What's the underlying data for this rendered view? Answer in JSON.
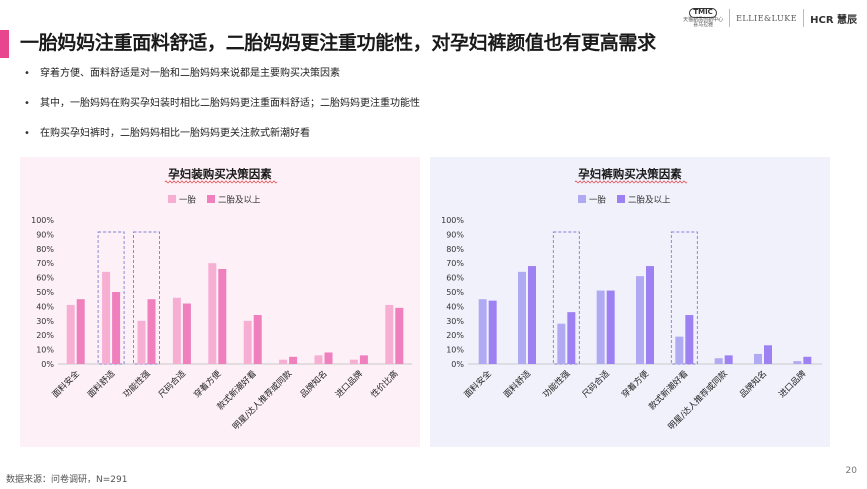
{
  "header": {
    "title": "一胎妈妈注重面料舒适，二胎妈妈更注重功能性，对孕妇裤颜值也有更高需求",
    "logos": {
      "tmic_main": "TMIC",
      "tmic_sub": "天猫新品创新中心\n喜马拉雅",
      "ellie": "ELLIE&LUKE",
      "hcr": "HCR 慧辰"
    }
  },
  "bullets": [
    "穿着方便、面料舒适是对一胎和二胎妈妈来说都是主要购买决策因素",
    "其中，一胎妈妈在购买孕妇装时相比二胎妈妈更注重面料舒适；二胎妈妈更注重功能性",
    "在购买孕妇裤时，二胎妈妈相比一胎妈妈更关注款式新潮好看"
  ],
  "chart_data": [
    {
      "type": "bar",
      "title": "孕妇装购买决策因素",
      "categories": [
        "面料安全",
        "面料舒适",
        "功能性强",
        "尺码合适",
        "穿着方便",
        "款式新潮好看",
        "明星/达人推荐或同款",
        "品牌知名",
        "进口品牌",
        "性价比高"
      ],
      "series": [
        {
          "name": "一胎",
          "values": [
            41,
            64,
            30,
            46,
            70,
            30,
            3,
            6,
            3,
            41
          ],
          "color": "#f7aed3"
        },
        {
          "name": "二胎及以上",
          "values": [
            45,
            50,
            45,
            42,
            66,
            34,
            5,
            8,
            6,
            39
          ],
          "color": "#ef7fbd"
        }
      ],
      "highlighted": [
        "面料舒适",
        "功能性强"
      ],
      "yticks": [
        "0%",
        "10%",
        "20%",
        "30%",
        "40%",
        "50%",
        "60%",
        "70%",
        "80%",
        "90%",
        "100%"
      ],
      "ylim": [
        0,
        100
      ],
      "legend": "top-center",
      "grid": false
    },
    {
      "type": "bar",
      "title": "孕妇裤购买决策因素",
      "categories": [
        "面料安全",
        "面料舒适",
        "功能性强",
        "尺码合适",
        "穿着方便",
        "款式新潮好看",
        "明星/达人推荐或同款",
        "品牌知名",
        "进口品牌"
      ],
      "series": [
        {
          "name": "一胎",
          "values": [
            45,
            64,
            28,
            51,
            61,
            19,
            4,
            7,
            2
          ],
          "color": "#b0aaf2"
        },
        {
          "name": "二胎及以上",
          "values": [
            44,
            68,
            36,
            51,
            68,
            34,
            6,
            13,
            5
          ],
          "color": "#9d80f2"
        }
      ],
      "highlighted": [
        "功能性强",
        "款式新潮好看"
      ],
      "yticks": [
        "0%",
        "10%",
        "20%",
        "30%",
        "40%",
        "50%",
        "60%",
        "70%",
        "80%",
        "90%",
        "100%"
      ],
      "ylim": [
        0,
        100
      ],
      "legend": "top-center",
      "grid": false
    }
  ],
  "footer": {
    "source": "数据来源：问卷调研，N=291",
    "page": "20"
  }
}
